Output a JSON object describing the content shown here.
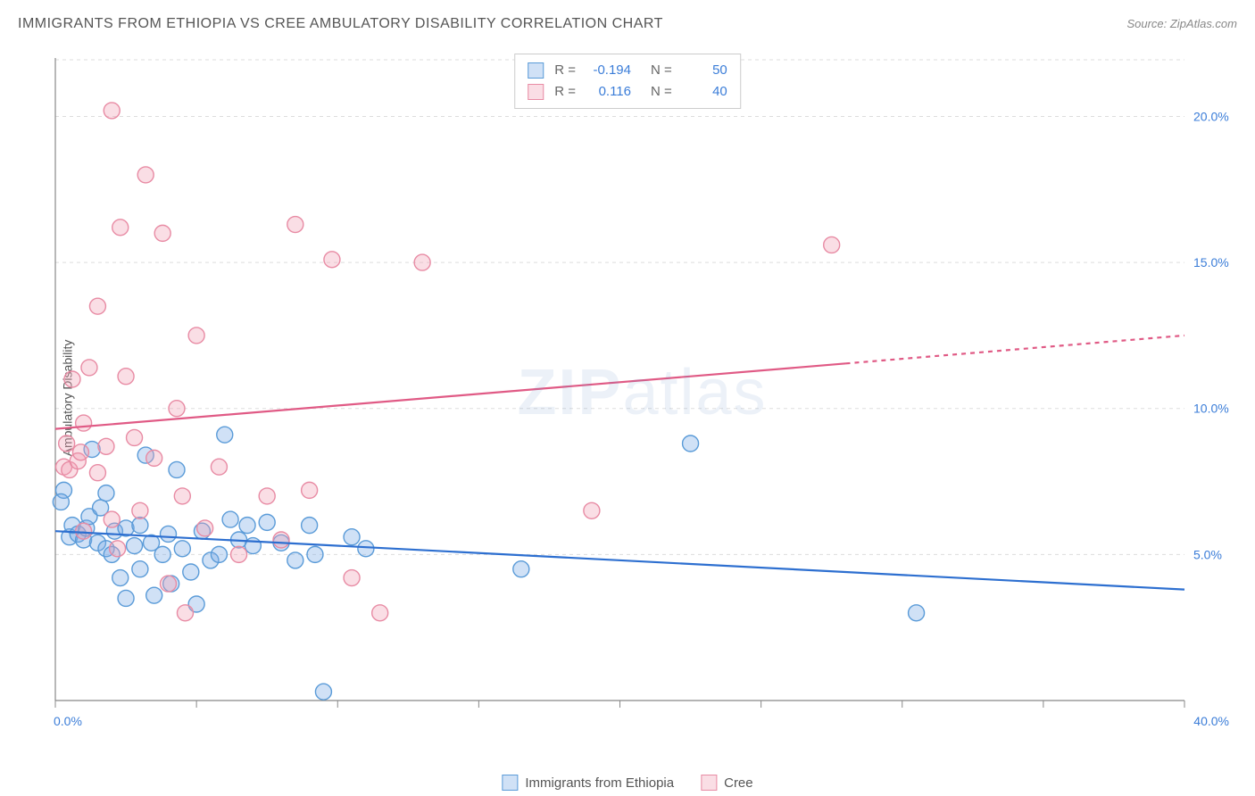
{
  "title": "IMMIGRANTS FROM ETHIOPIA VS CREE AMBULATORY DISABILITY CORRELATION CHART",
  "source_label": "Source: ",
  "source_name": "ZipAtlas.com",
  "watermark": "ZIPatlas",
  "ylabel": "Ambulatory Disability",
  "chart": {
    "type": "scatter",
    "background_color": "#ffffff",
    "grid_color": "#dddddd",
    "grid_dash": "4 4",
    "axis_color": "#888888",
    "xlim": [
      0,
      40
    ],
    "ylim": [
      0,
      22
    ],
    "x_ticks": [
      0,
      5,
      10,
      15,
      20,
      25,
      30,
      35,
      40
    ],
    "x_tick_labels": {
      "0": "0.0%",
      "40": "40.0%"
    },
    "y_gridlines": [
      5,
      10,
      15,
      20
    ],
    "y_tick_labels": {
      "5": "5.0%",
      "10": "10.0%",
      "15": "15.0%",
      "20": "20.0%"
    },
    "tick_label_color": "#3b7dd8",
    "tick_label_fontsize": 14,
    "marker_radius": 9,
    "marker_stroke_width": 1.4,
    "trend_line_width": 2.2,
    "series": [
      {
        "key": "ethiopia",
        "label": "Immigrants from Ethiopia",
        "fill": "rgba(120,170,230,0.35)",
        "stroke": "#5a9bd8",
        "line_color": "#2d6fd0",
        "R": "-0.194",
        "N": "50",
        "trend": {
          "x1": 0,
          "y1": 5.8,
          "x2": 40,
          "y2": 3.8,
          "dashed_from": null
        },
        "points": [
          [
            0.3,
            7.2
          ],
          [
            0.5,
            5.6
          ],
          [
            0.6,
            6.0
          ],
          [
            0.8,
            5.7
          ],
          [
            1.0,
            5.5
          ],
          [
            1.1,
            5.9
          ],
          [
            1.2,
            6.3
          ],
          [
            1.3,
            8.6
          ],
          [
            1.5,
            5.4
          ],
          [
            1.6,
            6.6
          ],
          [
            1.8,
            5.2
          ],
          [
            1.8,
            7.1
          ],
          [
            2.0,
            5.0
          ],
          [
            2.1,
            5.8
          ],
          [
            2.3,
            4.2
          ],
          [
            2.5,
            5.9
          ],
          [
            2.5,
            3.5
          ],
          [
            2.8,
            5.3
          ],
          [
            3.0,
            6.0
          ],
          [
            3.0,
            4.5
          ],
          [
            3.2,
            8.4
          ],
          [
            3.4,
            5.4
          ],
          [
            3.5,
            3.6
          ],
          [
            3.8,
            5.0
          ],
          [
            4.0,
            5.7
          ],
          [
            4.1,
            4.0
          ],
          [
            4.3,
            7.9
          ],
          [
            4.5,
            5.2
          ],
          [
            4.8,
            4.4
          ],
          [
            5.0,
            3.3
          ],
          [
            5.2,
            5.8
          ],
          [
            5.5,
            4.8
          ],
          [
            5.8,
            5.0
          ],
          [
            6.0,
            9.1
          ],
          [
            6.2,
            6.2
          ],
          [
            6.5,
            5.5
          ],
          [
            6.8,
            6.0
          ],
          [
            7.0,
            5.3
          ],
          [
            7.5,
            6.1
          ],
          [
            8.0,
            5.4
          ],
          [
            8.5,
            4.8
          ],
          [
            9.0,
            6.0
          ],
          [
            9.2,
            5.0
          ],
          [
            9.5,
            0.3
          ],
          [
            10.5,
            5.6
          ],
          [
            11.0,
            5.2
          ],
          [
            16.5,
            4.5
          ],
          [
            22.5,
            8.8
          ],
          [
            30.5,
            3.0
          ],
          [
            0.2,
            6.8
          ]
        ]
      },
      {
        "key": "cree",
        "label": "Cree",
        "fill": "rgba(240,160,180,0.35)",
        "stroke": "#e88ba4",
        "line_color": "#e05a85",
        "R": "0.116",
        "N": "40",
        "trend": {
          "x1": 0,
          "y1": 9.3,
          "x2": 40,
          "y2": 12.5,
          "dashed_from": 28
        },
        "points": [
          [
            0.3,
            8.0
          ],
          [
            0.4,
            8.8
          ],
          [
            0.5,
            7.9
          ],
          [
            0.6,
            11.0
          ],
          [
            0.8,
            8.2
          ],
          [
            0.9,
            8.5
          ],
          [
            1.0,
            5.8
          ],
          [
            1.2,
            11.4
          ],
          [
            1.5,
            7.8
          ],
          [
            1.5,
            13.5
          ],
          [
            1.8,
            8.7
          ],
          [
            2.0,
            6.2
          ],
          [
            2.0,
            20.2
          ],
          [
            2.2,
            5.2
          ],
          [
            2.3,
            16.2
          ],
          [
            2.5,
            11.1
          ],
          [
            2.8,
            9.0
          ],
          [
            3.0,
            6.5
          ],
          [
            3.2,
            18.0
          ],
          [
            3.5,
            8.3
          ],
          [
            3.8,
            16.0
          ],
          [
            4.0,
            4.0
          ],
          [
            4.3,
            10.0
          ],
          [
            4.5,
            7.0
          ],
          [
            4.6,
            3.0
          ],
          [
            5.0,
            12.5
          ],
          [
            5.3,
            5.9
          ],
          [
            5.8,
            8.0
          ],
          [
            6.5,
            5.0
          ],
          [
            7.5,
            7.0
          ],
          [
            8.0,
            5.5
          ],
          [
            8.5,
            16.3
          ],
          [
            9.0,
            7.2
          ],
          [
            9.8,
            15.1
          ],
          [
            10.5,
            4.2
          ],
          [
            11.5,
            3.0
          ],
          [
            13.0,
            15.0
          ],
          [
            19.0,
            6.5
          ],
          [
            27.5,
            15.6
          ],
          [
            1.0,
            9.5
          ]
        ]
      }
    ]
  },
  "top_legend": {
    "R_label": "R =",
    "N_label": "N ="
  }
}
